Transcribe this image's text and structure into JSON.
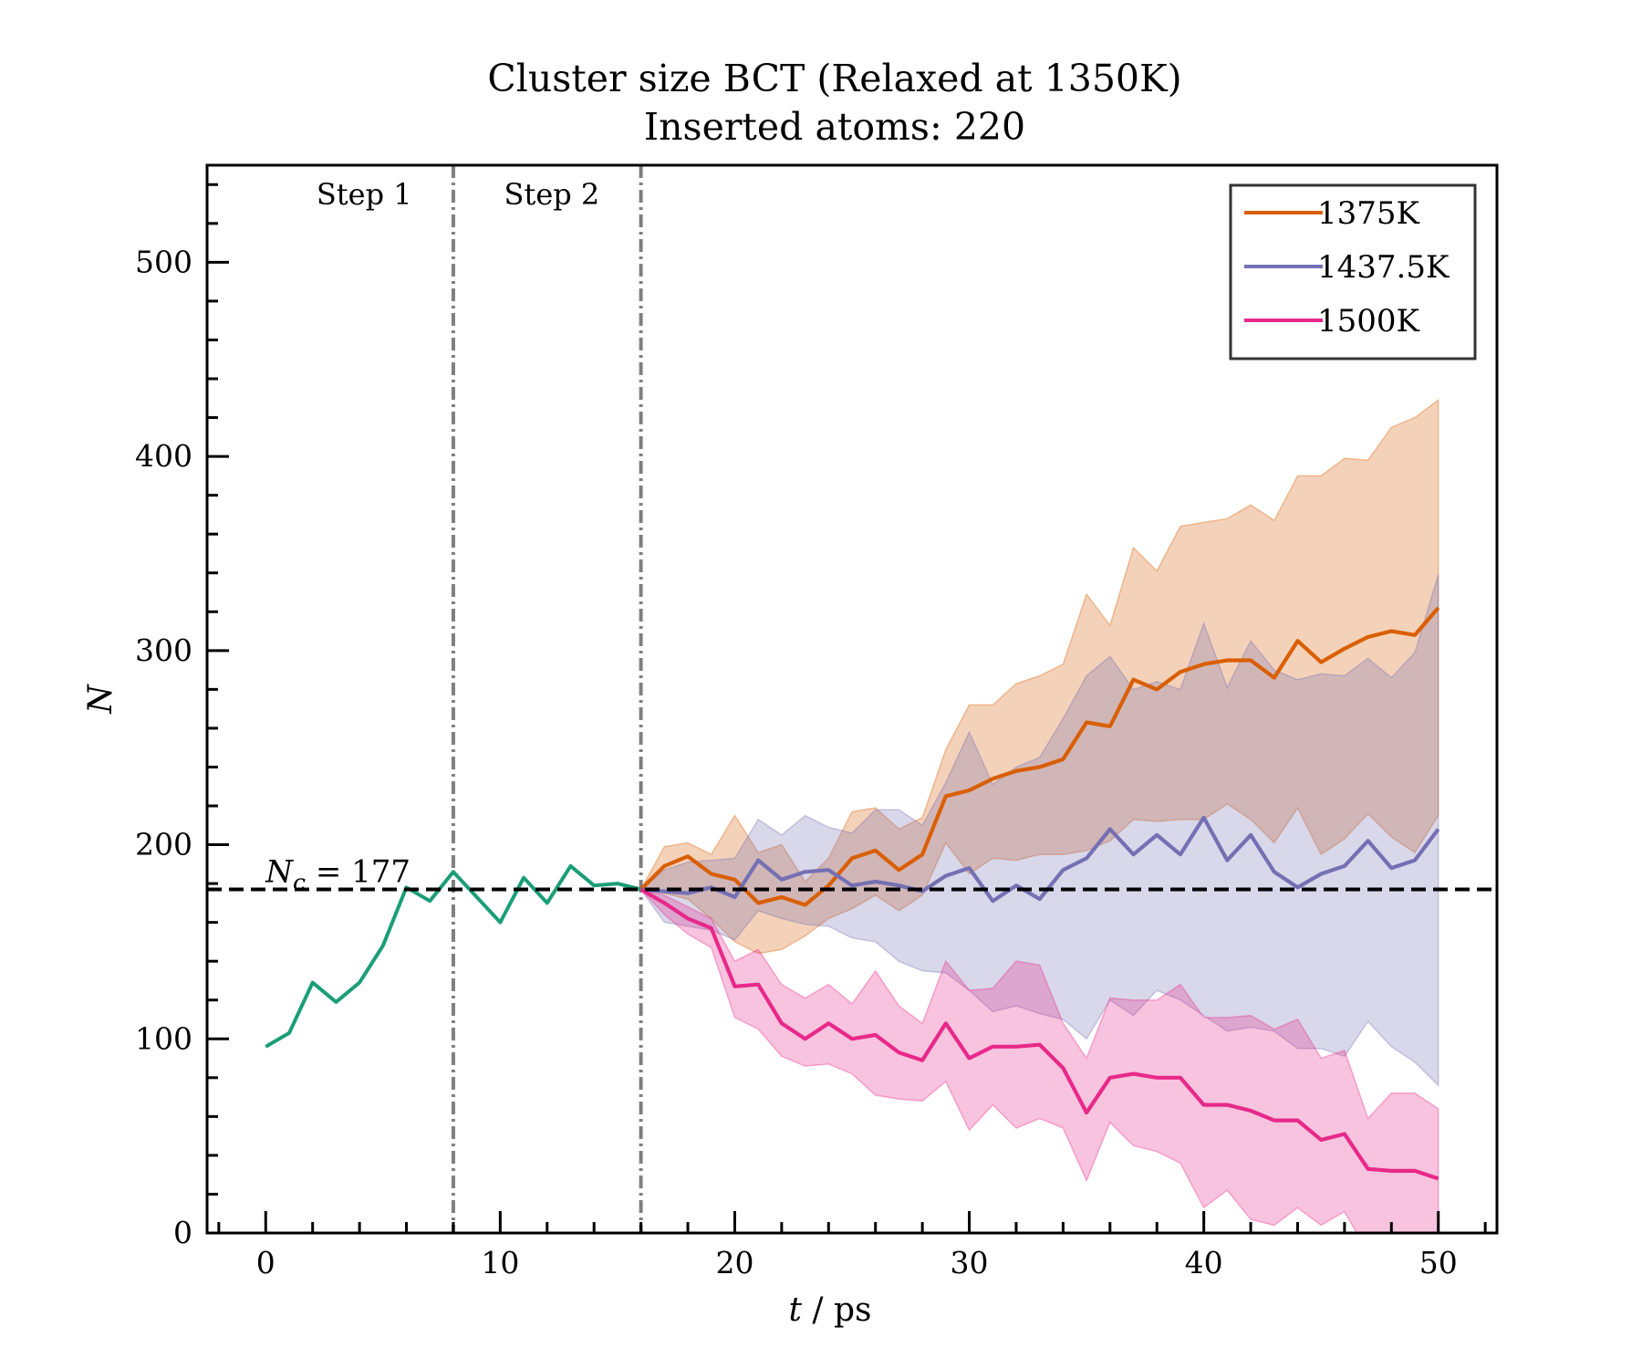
{
  "chart_data": {
    "type": "line",
    "title": "Cluster size BCT (Relaxed at 1350K)",
    "subtitle": "Inserted atoms: 220",
    "xlabel": "t / ps",
    "ylabel": "N",
    "xlim": [
      -2.5,
      52.5
    ],
    "ylim": [
      0,
      550
    ],
    "xticks": [
      0,
      10,
      20,
      30,
      40,
      50
    ],
    "yticks": [
      0,
      100,
      200,
      300,
      400,
      500
    ],
    "legend_position": "top-right",
    "reference_line": {
      "y": 177,
      "label": "N_c = 177",
      "label_main": "N",
      "label_sub": "c",
      "label_rest": " = 177",
      "style": "dashed",
      "color": "#000000"
    },
    "vlines": [
      {
        "x": 8,
        "style": "dashdot",
        "color": "#808080"
      },
      {
        "x": 16,
        "style": "dashdot",
        "color": "#808080"
      }
    ],
    "annotations": [
      {
        "text": "Step 1",
        "x": 4.2,
        "y": 535
      },
      {
        "text": "Step 2",
        "x": 12.2,
        "y": 535
      }
    ],
    "initial_series": {
      "color": "#1b9e77",
      "x": [
        0,
        1,
        2,
        3,
        4,
        5,
        6,
        7,
        8,
        9,
        10,
        11,
        12,
        13,
        14,
        15,
        16
      ],
      "y": [
        96,
        103,
        129,
        119,
        129,
        148,
        178,
        171,
        186,
        173,
        160,
        183,
        170,
        189,
        179,
        180,
        177
      ]
    },
    "series": [
      {
        "name": "1375K",
        "color": "#d95f02",
        "x": [
          16,
          17,
          18,
          19,
          20,
          21,
          22,
          23,
          24,
          25,
          26,
          27,
          28,
          29,
          30,
          31,
          32,
          33,
          34,
          35,
          36,
          37,
          38,
          39,
          40,
          41,
          42,
          43,
          44,
          45,
          46,
          47,
          48,
          49,
          50
        ],
        "y": [
          177,
          189,
          194,
          185,
          182,
          170,
          173,
          169,
          179,
          193,
          197,
          187,
          195,
          225,
          228,
          234,
          238,
          240,
          244,
          263,
          261,
          285,
          280,
          289,
          293,
          295,
          295,
          286,
          305,
          294,
          301,
          307,
          310,
          308,
          322
        ],
        "upper": [
          177,
          199,
          201,
          195,
          215,
          196,
          200,
          181,
          193,
          217,
          219,
          208,
          214,
          249,
          272,
          272,
          283,
          287,
          293,
          329,
          313,
          353,
          341,
          364,
          366,
          368,
          375,
          367,
          390,
          390,
          399,
          398,
          415,
          420,
          429
        ],
        "lower": [
          177,
          175,
          172,
          162,
          150,
          144,
          146,
          153,
          162,
          167,
          174,
          166,
          174,
          201,
          185,
          193,
          192,
          195,
          195,
          197,
          202,
          213,
          212,
          213,
          213,
          221,
          213,
          201,
          219,
          195,
          203,
          216,
          204,
          196,
          215
        ]
      },
      {
        "name": "1437.5K",
        "color": "#7570b3",
        "x": [
          16,
          17,
          18,
          19,
          20,
          21,
          22,
          23,
          24,
          25,
          26,
          27,
          28,
          29,
          30,
          31,
          32,
          33,
          34,
          35,
          36,
          37,
          38,
          39,
          40,
          41,
          42,
          43,
          44,
          45,
          46,
          47,
          48,
          49,
          50
        ],
        "y": [
          177,
          176,
          175,
          178,
          173,
          192,
          182,
          186,
          187,
          179,
          181,
          179,
          176,
          184,
          188,
          171,
          179,
          172,
          187,
          193,
          208,
          195,
          205,
          195,
          214,
          192,
          205,
          186,
          178,
          185,
          189,
          202,
          188,
          192,
          208
        ],
        "upper": [
          177,
          187,
          191,
          192,
          193,
          213,
          205,
          215,
          209,
          206,
          218,
          218,
          210,
          232,
          258,
          231,
          240,
          245,
          265,
          287,
          297,
          280,
          284,
          280,
          314,
          281,
          305,
          290,
          285,
          288,
          287,
          296,
          286,
          299,
          339
        ],
        "lower": [
          177,
          160,
          158,
          156,
          151,
          166,
          162,
          159,
          158,
          152,
          150,
          140,
          135,
          134,
          125,
          114,
          117,
          113,
          110,
          100,
          120,
          112,
          125,
          120,
          112,
          104,
          106,
          104,
          95,
          95,
          91,
          109,
          96,
          88,
          76
        ]
      },
      {
        "name": "1500K",
        "color": "#e7298a",
        "x": [
          16,
          17,
          18,
          19,
          20,
          21,
          22,
          23,
          24,
          25,
          26,
          27,
          28,
          29,
          30,
          31,
          32,
          33,
          34,
          35,
          36,
          37,
          38,
          39,
          40,
          41,
          42,
          43,
          44,
          45,
          46,
          47,
          48,
          49,
          50
        ],
        "y": [
          177,
          170,
          162,
          157,
          127,
          128,
          108,
          100,
          108,
          100,
          102,
          93,
          89,
          108,
          90,
          96,
          96,
          97,
          85,
          62,
          80,
          82,
          80,
          80,
          66,
          66,
          63,
          58,
          58,
          48,
          51,
          33,
          32,
          32,
          28
        ],
        "upper": [
          177,
          174,
          168,
          162,
          140,
          146,
          128,
          121,
          128,
          118,
          135,
          117,
          108,
          140,
          125,
          126,
          140,
          138,
          108,
          90,
          121,
          120,
          120,
          128,
          111,
          111,
          112,
          105,
          110,
          90,
          94,
          59,
          72,
          72,
          64
        ],
        "lower": [
          177,
          164,
          154,
          147,
          111,
          105,
          91,
          86,
          87,
          82,
          71,
          69,
          68,
          78,
          53,
          66,
          54,
          59,
          54,
          27,
          57,
          45,
          42,
          36,
          13,
          22,
          7,
          4,
          13,
          4,
          11,
          -10,
          -8,
          -8,
          -10
        ]
      }
    ]
  }
}
